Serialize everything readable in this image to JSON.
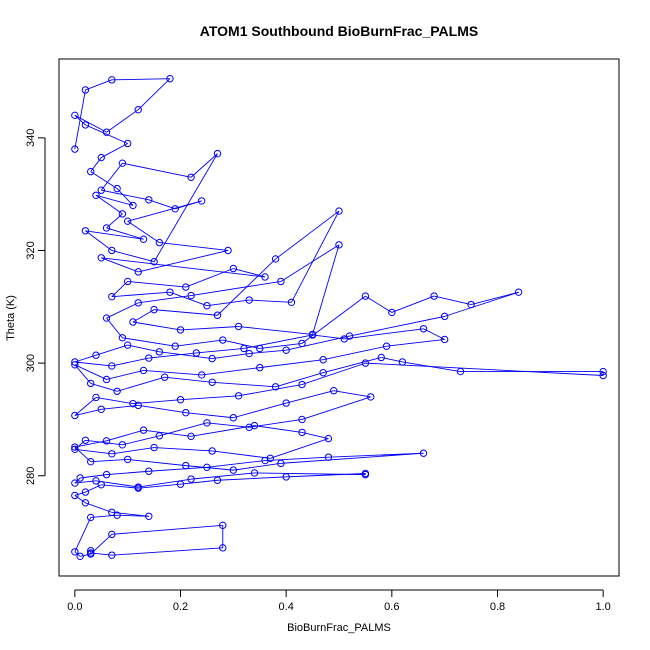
{
  "chart_data": {
    "type": "scatter",
    "title": "ATOM1 Southbound BioBurnFrac_PALMS",
    "xlabel": "BioBurnFrac_PALMS",
    "ylabel": "Theta (K)",
    "xlim": [
      -0.03,
      1.03
    ],
    "ylim": [
      262.2,
      354.0
    ],
    "x_ticks": [
      0.0,
      0.2,
      0.4,
      0.6,
      0.8,
      1.0
    ],
    "x_tick_labels": [
      "0.0",
      "0.2",
      "0.4",
      "0.6",
      "0.8",
      "1.0"
    ],
    "y_ticks": [
      280,
      300,
      320,
      340
    ],
    "y_tick_labels": [
      "280",
      "300",
      "320",
      "340"
    ],
    "grid": false,
    "legend": "none",
    "style": "points connected by lines, open circles",
    "series_color": "#0000ff",
    "x": [
      0.0,
      0.02,
      0.07,
      0.18,
      0.12,
      0.06,
      0.0,
      0.02,
      0.1,
      0.05,
      0.03,
      0.08,
      0.11,
      0.04,
      0.09,
      0.06,
      0.13,
      0.02,
      0.07,
      0.15,
      0.27,
      0.22,
      0.09,
      0.05,
      0.14,
      0.19,
      0.24,
      0.1,
      0.16,
      0.29,
      0.12,
      0.05,
      0.36,
      0.3,
      0.21,
      0.1,
      0.07,
      0.18,
      0.25,
      0.33,
      0.41,
      0.5,
      0.38,
      0.27,
      0.15,
      0.11,
      0.2,
      0.31,
      0.45,
      0.5,
      0.39,
      0.22,
      0.12,
      0.06,
      0.09,
      0.19,
      0.28,
      0.35,
      0.43,
      0.55,
      0.6,
      0.68,
      0.75,
      0.84,
      0.7,
      0.52,
      0.4,
      0.33,
      0.26,
      0.16,
      0.1,
      0.04,
      0.0,
      0.07,
      0.14,
      0.23,
      0.32,
      0.45,
      0.51,
      0.66,
      0.7,
      0.59,
      0.47,
      0.35,
      0.24,
      0.13,
      0.06,
      0.0,
      0.03,
      0.08,
      0.17,
      0.26,
      0.38,
      0.47,
      0.58,
      0.62,
      0.73,
      1.0,
      1.0,
      0.55,
      0.43,
      0.31,
      0.2,
      0.11,
      0.04,
      0.0,
      0.05,
      0.12,
      0.21,
      0.3,
      0.4,
      0.49,
      0.56,
      0.43,
      0.33,
      0.25,
      0.16,
      0.09,
      0.02,
      0.0,
      0.07,
      0.15,
      0.26,
      0.37,
      0.48,
      0.43,
      0.34,
      0.22,
      0.13,
      0.06,
      0.0,
      0.03,
      0.1,
      0.21,
      0.3,
      0.39,
      0.66,
      0.48,
      0.36,
      0.25,
      0.14,
      0.06,
      0.01,
      0.0,
      0.04,
      0.12,
      0.22,
      0.34,
      0.55,
      0.55,
      0.4,
      0.27,
      0.2,
      0.12,
      0.05,
      0.02,
      0.0,
      0.02,
      0.07,
      0.14,
      0.08,
      0.03,
      0.0,
      0.01,
      0.03,
      0.07,
      0.28,
      0.28,
      0.07,
      0.03,
      0.03
    ],
    "y": [
      338.0,
      348.5,
      350.3,
      350.5,
      345.0,
      341.0,
      344.0,
      342.3,
      339.0,
      336.5,
      334.0,
      331.0,
      328.0,
      329.8,
      326.5,
      324.0,
      322.0,
      323.5,
      320.0,
      318.0,
      337.2,
      333.0,
      335.5,
      330.7,
      329.0,
      327.4,
      328.8,
      325.2,
      321.4,
      320.0,
      316.2,
      318.7,
      315.3,
      316.8,
      313.5,
      314.5,
      311.8,
      312.6,
      310.2,
      311.2,
      310.8,
      327.0,
      318.5,
      308.5,
      309.5,
      307.3,
      305.9,
      306.5,
      305.1,
      321.0,
      314.5,
      312.0,
      310.7,
      308.0,
      304.5,
      303.0,
      304.1,
      302.6,
      303.5,
      311.9,
      309.0,
      311.9,
      310.4,
      312.6,
      308.3,
      304.8,
      302.3,
      301.7,
      300.8,
      302.0,
      303.2,
      301.4,
      300.2,
      299.5,
      300.9,
      301.8,
      302.6,
      305.0,
      304.3,
      306.1,
      304.2,
      303.0,
      300.6,
      299.2,
      297.9,
      298.7,
      297.1,
      299.7,
      296.4,
      295.0,
      297.5,
      296.6,
      295.8,
      298.3,
      301.0,
      300.2,
      298.5,
      298.5,
      297.8,
      300.0,
      296.2,
      294.2,
      293.5,
      292.8,
      293.9,
      290.7,
      291.8,
      292.5,
      291.2,
      290.3,
      292.9,
      295.1,
      294.0,
      290.0,
      288.6,
      289.4,
      287.1,
      285.5,
      286.3,
      284.7,
      283.9,
      285.0,
      284.4,
      283.1,
      286.6,
      287.7,
      288.9,
      287.0,
      288.1,
      286.2,
      285.1,
      282.5,
      282.9,
      281.8,
      281.0,
      282.2,
      284.0,
      283.3,
      282.7,
      281.5,
      280.8,
      280.2,
      279.6,
      278.7,
      279.1,
      278.0,
      279.4,
      280.5,
      280.2,
      280.4,
      279.8,
      279.2,
      278.5,
      277.8,
      278.4,
      277.1,
      276.5,
      275.2,
      273.5,
      272.8,
      273.0,
      272.6,
      266.5,
      265.7,
      266.1,
      269.6,
      271.2,
      267.2,
      265.9,
      266.3,
      266.7
    ]
  }
}
